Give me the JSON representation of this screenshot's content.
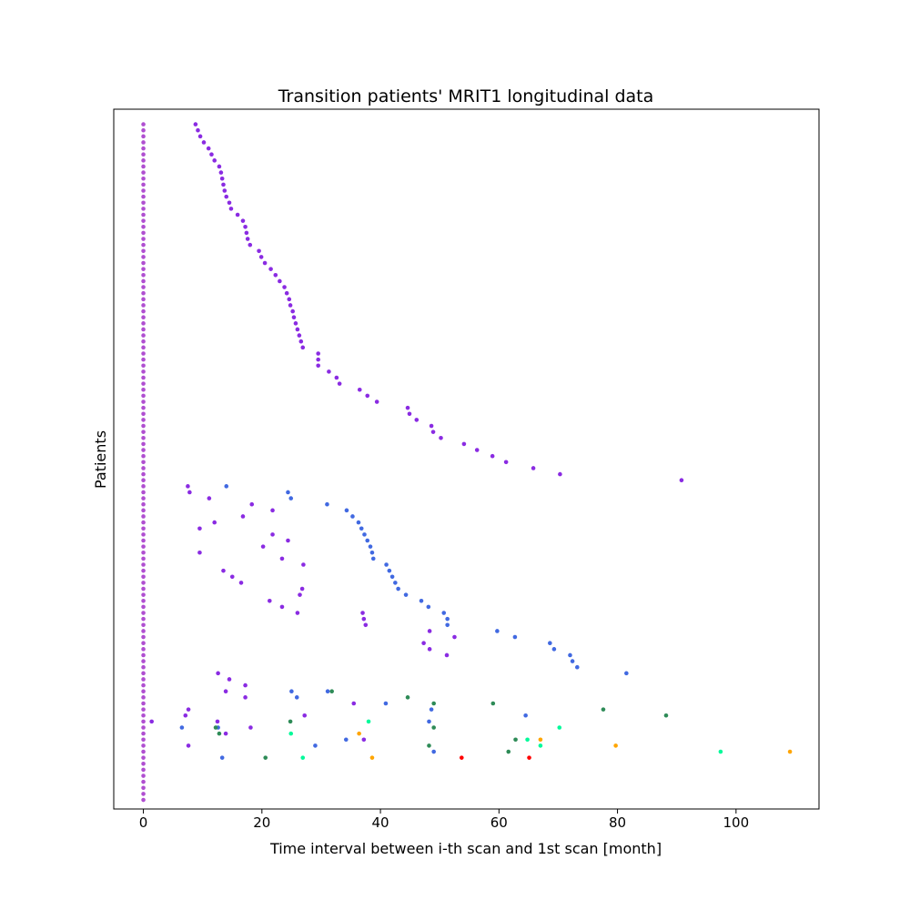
{
  "chart_data": {
    "type": "scatter",
    "title": "Transition patients' MRIT1 longitudinal data",
    "xlabel": "Time interval between i-th scan and 1st scan [month]",
    "ylabel": "Patients",
    "xlim": [
      -5,
      114
    ],
    "ylim": [
      -1.5,
      114.5
    ],
    "xticks": [
      0,
      20,
      40,
      60,
      80,
      100
    ],
    "yticks": [],
    "grid": false,
    "colors": {
      "baseline": "#b04fd1",
      "purple": "#8a2be2",
      "blue": "#4169e1",
      "green": "#2e8b57",
      "cyan": "#00fa9a",
      "orange": "#ffa500",
      "red": "#ff0000"
    },
    "series": [
      {
        "color": "baseline",
        "points": [
          [
            0,
            0
          ],
          [
            0,
            1
          ],
          [
            0,
            2
          ],
          [
            0,
            3
          ],
          [
            0,
            4
          ],
          [
            0,
            5
          ],
          [
            0,
            6
          ],
          [
            0,
            7
          ],
          [
            0,
            8
          ],
          [
            0,
            9
          ],
          [
            0,
            10
          ],
          [
            0,
            11
          ],
          [
            0,
            12
          ],
          [
            0,
            13
          ],
          [
            0,
            14
          ],
          [
            0,
            15
          ],
          [
            0,
            16
          ],
          [
            0,
            17
          ],
          [
            0,
            18
          ],
          [
            0,
            19
          ],
          [
            0,
            20
          ],
          [
            0,
            21
          ],
          [
            0,
            22
          ],
          [
            0,
            23
          ],
          [
            0,
            24
          ],
          [
            0,
            25
          ],
          [
            0,
            26
          ],
          [
            0,
            27
          ],
          [
            0,
            28
          ],
          [
            0,
            29
          ],
          [
            0,
            30
          ],
          [
            0,
            31
          ],
          [
            0,
            32
          ],
          [
            0,
            33
          ],
          [
            0,
            34
          ],
          [
            0,
            35
          ],
          [
            0,
            36
          ],
          [
            0,
            37
          ],
          [
            0,
            38
          ],
          [
            0,
            39
          ],
          [
            0,
            40
          ],
          [
            0,
            41
          ],
          [
            0,
            42
          ],
          [
            0,
            43
          ],
          [
            0,
            44
          ],
          [
            0,
            45
          ],
          [
            0,
            46
          ],
          [
            0,
            47
          ],
          [
            0,
            48
          ],
          [
            0,
            49
          ],
          [
            0,
            50
          ],
          [
            0,
            51
          ],
          [
            0,
            52
          ],
          [
            0,
            53
          ],
          [
            0,
            54
          ],
          [
            0,
            55
          ],
          [
            0,
            56
          ],
          [
            0,
            57
          ],
          [
            0,
            58
          ],
          [
            0,
            59
          ],
          [
            0,
            60
          ],
          [
            0,
            61
          ],
          [
            0,
            62
          ],
          [
            0,
            63
          ],
          [
            0,
            64
          ],
          [
            0,
            65
          ],
          [
            0,
            66
          ],
          [
            0,
            67
          ],
          [
            0,
            68
          ],
          [
            0,
            69
          ],
          [
            0,
            70
          ],
          [
            0,
            71
          ],
          [
            0,
            72
          ],
          [
            0,
            73
          ],
          [
            0,
            74
          ],
          [
            0,
            75
          ],
          [
            0,
            76
          ],
          [
            0,
            77
          ],
          [
            0,
            78
          ],
          [
            0,
            79
          ],
          [
            0,
            80
          ],
          [
            0,
            81
          ],
          [
            0,
            82
          ],
          [
            0,
            83
          ],
          [
            0,
            84
          ],
          [
            0,
            85
          ],
          [
            0,
            86
          ],
          [
            0,
            87
          ],
          [
            0,
            88
          ],
          [
            0,
            89
          ],
          [
            0,
            90
          ],
          [
            0,
            91
          ],
          [
            0,
            92
          ],
          [
            0,
            93
          ],
          [
            0,
            94
          ],
          [
            0,
            95
          ],
          [
            0,
            96
          ],
          [
            0,
            97
          ],
          [
            0,
            98
          ],
          [
            0,
            99
          ],
          [
            0,
            100
          ],
          [
            0,
            101
          ],
          [
            0,
            102
          ],
          [
            0,
            103
          ],
          [
            0,
            104
          ],
          [
            0,
            105
          ],
          [
            0,
            106
          ],
          [
            0,
            107
          ],
          [
            0,
            108
          ],
          [
            0,
            109
          ],
          [
            0,
            110
          ],
          [
            0,
            111
          ],
          [
            0,
            112
          ]
        ]
      },
      {
        "color": "purple",
        "points": [
          [
            8.8,
            112
          ],
          [
            9.2,
            111
          ],
          [
            9.6,
            110
          ],
          [
            10.2,
            109
          ],
          [
            11.0,
            108
          ],
          [
            11.5,
            107
          ],
          [
            12.0,
            106
          ],
          [
            12.8,
            105
          ],
          [
            13.1,
            104
          ],
          [
            13.3,
            103
          ],
          [
            13.5,
            102
          ],
          [
            13.7,
            101
          ],
          [
            14.0,
            100
          ],
          [
            14.5,
            99
          ],
          [
            14.8,
            98
          ],
          [
            15.9,
            97
          ],
          [
            16.8,
            96
          ],
          [
            17.2,
            95
          ],
          [
            17.4,
            94
          ],
          [
            17.6,
            93
          ],
          [
            18.0,
            92
          ],
          [
            19.5,
            91
          ],
          [
            19.9,
            90
          ],
          [
            20.5,
            89
          ],
          [
            21.5,
            88
          ],
          [
            22.3,
            87
          ],
          [
            23.0,
            86
          ],
          [
            23.8,
            85
          ],
          [
            24.2,
            84
          ],
          [
            24.6,
            83
          ],
          [
            24.8,
            82
          ],
          [
            25.2,
            81
          ],
          [
            25.4,
            80
          ],
          [
            25.7,
            79
          ],
          [
            26.0,
            78
          ],
          [
            26.3,
            77
          ],
          [
            26.6,
            76
          ],
          [
            26.9,
            75
          ],
          [
            29.5,
            74
          ],
          [
            29.5,
            73
          ],
          [
            29.5,
            72
          ],
          [
            31.3,
            71
          ],
          [
            32.6,
            70
          ],
          [
            33.1,
            69
          ],
          [
            36.5,
            68
          ],
          [
            37.8,
            67
          ],
          [
            39.4,
            66
          ],
          [
            44.6,
            65
          ],
          [
            44.9,
            64
          ],
          [
            46.1,
            63
          ],
          [
            48.6,
            62
          ],
          [
            48.9,
            61
          ],
          [
            50.2,
            60
          ],
          [
            54.1,
            59
          ],
          [
            56.3,
            58
          ],
          [
            58.9,
            57
          ],
          [
            61.2,
            56
          ],
          [
            65.8,
            55
          ],
          [
            70.3,
            54
          ],
          [
            90.8,
            53
          ],
          [
            7.5,
            52
          ],
          [
            7.8,
            51
          ],
          [
            11.1,
            50
          ],
          [
            18.3,
            49
          ],
          [
            21.8,
            48
          ],
          [
            16.8,
            47
          ],
          [
            12.0,
            46
          ],
          [
            9.5,
            45
          ],
          [
            21.8,
            44
          ],
          [
            24.4,
            43
          ],
          [
            20.2,
            42
          ],
          [
            9.5,
            41
          ],
          [
            23.4,
            40
          ],
          [
            27.0,
            39
          ],
          [
            13.5,
            38
          ],
          [
            15.0,
            37
          ],
          [
            16.5,
            36
          ],
          [
            26.8,
            35
          ],
          [
            26.4,
            34
          ],
          [
            21.3,
            33
          ],
          [
            23.4,
            32
          ],
          [
            26.0,
            31
          ],
          [
            37.0,
            31
          ],
          [
            37.2,
            30
          ],
          [
            37.5,
            29
          ],
          [
            48.3,
            28
          ],
          [
            52.5,
            27
          ],
          [
            47.3,
            26
          ],
          [
            48.3,
            25
          ],
          [
            51.2,
            24
          ],
          [
            12.6,
            21
          ],
          [
            14.5,
            20
          ],
          [
            17.2,
            19
          ],
          [
            13.9,
            18
          ],
          [
            17.2,
            17
          ],
          [
            35.5,
            16
          ],
          [
            7.6,
            15
          ],
          [
            7.1,
            14
          ],
          [
            27.2,
            14
          ],
          [
            1.4,
            13
          ],
          [
            12.5,
            13
          ],
          [
            18.1,
            12
          ],
          [
            13.9,
            11
          ],
          [
            37.2,
            10
          ],
          [
            7.6,
            9
          ]
        ]
      },
      {
        "color": "blue",
        "points": [
          [
            14.0,
            52
          ],
          [
            24.4,
            51
          ],
          [
            24.9,
            50
          ],
          [
            31.0,
            49
          ],
          [
            34.3,
            48
          ],
          [
            35.3,
            47
          ],
          [
            36.3,
            46
          ],
          [
            36.8,
            45
          ],
          [
            37.3,
            44
          ],
          [
            37.8,
            43
          ],
          [
            38.3,
            42
          ],
          [
            38.6,
            41
          ],
          [
            38.8,
            40
          ],
          [
            41.0,
            39
          ],
          [
            41.5,
            38
          ],
          [
            42.0,
            37
          ],
          [
            42.5,
            36
          ],
          [
            43.0,
            35
          ],
          [
            44.3,
            34
          ],
          [
            46.9,
            33
          ],
          [
            48.1,
            32
          ],
          [
            50.7,
            31
          ],
          [
            51.3,
            30
          ],
          [
            51.3,
            29
          ],
          [
            59.7,
            28
          ],
          [
            62.7,
            27
          ],
          [
            68.6,
            26
          ],
          [
            69.3,
            25
          ],
          [
            72.0,
            24
          ],
          [
            72.4,
            23
          ],
          [
            73.2,
            22
          ],
          [
            81.5,
            21
          ],
          [
            25.0,
            18
          ],
          [
            25.9,
            17
          ],
          [
            31.1,
            18
          ],
          [
            40.9,
            16
          ],
          [
            48.6,
            15
          ],
          [
            64.5,
            14
          ],
          [
            12.6,
            12
          ],
          [
            6.5,
            12
          ],
          [
            34.2,
            10
          ],
          [
            29.0,
            9
          ],
          [
            48.2,
            13
          ],
          [
            49.0,
            8
          ],
          [
            13.3,
            7
          ]
        ]
      },
      {
        "color": "green",
        "points": [
          [
            31.8,
            18
          ],
          [
            44.6,
            17
          ],
          [
            49.0,
            16
          ],
          [
            59.0,
            16
          ],
          [
            24.8,
            13
          ],
          [
            12.2,
            12
          ],
          [
            49.0,
            12
          ],
          [
            12.8,
            11
          ],
          [
            77.6,
            15
          ],
          [
            88.2,
            14
          ],
          [
            48.2,
            9
          ],
          [
            62.8,
            10
          ],
          [
            61.6,
            8
          ],
          [
            20.6,
            7
          ]
        ]
      },
      {
        "color": "cyan",
        "points": [
          [
            38.0,
            13
          ],
          [
            24.9,
            11
          ],
          [
            64.8,
            10
          ],
          [
            70.2,
            12
          ],
          [
            67.0,
            9
          ],
          [
            97.4,
            8
          ],
          [
            26.9,
            7
          ]
        ]
      },
      {
        "color": "orange",
        "points": [
          [
            36.4,
            11
          ],
          [
            67.0,
            10
          ],
          [
            79.7,
            9
          ],
          [
            109.1,
            8
          ],
          [
            38.6,
            7
          ]
        ]
      },
      {
        "color": "red",
        "points": [
          [
            53.7,
            7
          ],
          [
            65.1,
            7
          ]
        ]
      }
    ]
  }
}
